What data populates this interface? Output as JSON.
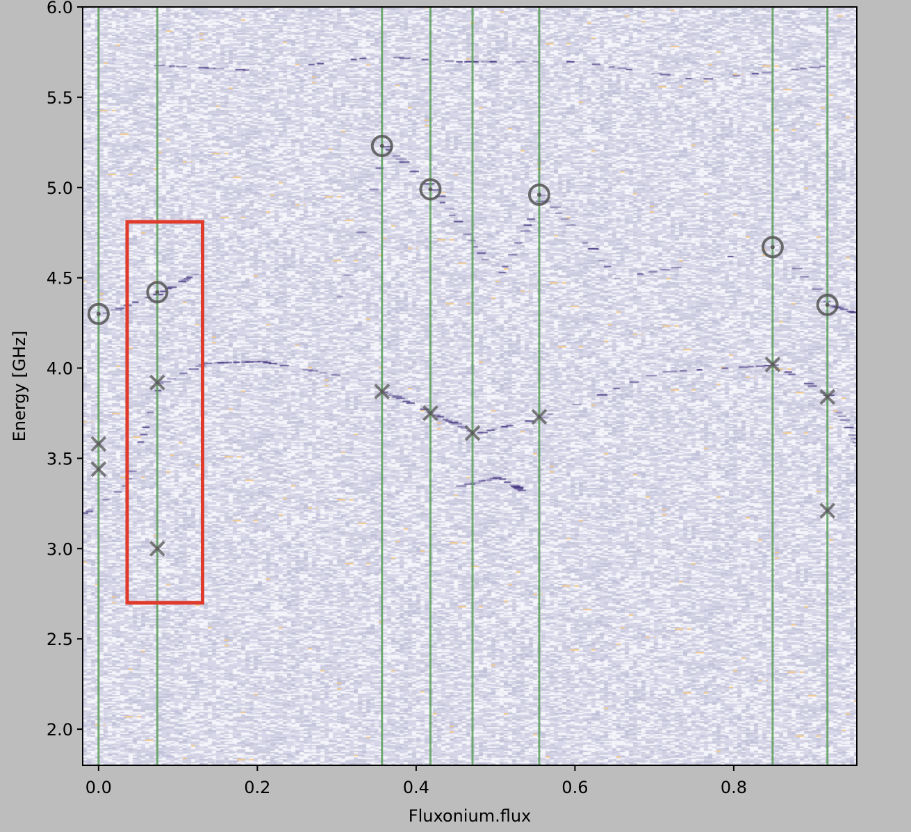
{
  "chart_data": {
    "type": "scatter",
    "title": "",
    "xlabel": "Fluxonium.flux",
    "ylabel": "Energy [GHz]",
    "xlim": [
      -0.02,
      0.955
    ],
    "ylim": [
      1.8,
      6.0
    ],
    "xticks": [
      0.0,
      0.2,
      0.4,
      0.6,
      0.8
    ],
    "xtick_labels": [
      "0.0",
      "0.2",
      "0.4",
      "0.6",
      "0.8"
    ],
    "yticks": [
      2.0,
      2.5,
      3.0,
      3.5,
      4.0,
      4.5,
      5.0,
      5.5,
      6.0
    ],
    "ytick_labels": [
      "2.0",
      "2.5",
      "3.0",
      "3.5",
      "4.0",
      "4.5",
      "5.0",
      "5.5",
      "6.0"
    ],
    "background": "two-tone spectroscopy heatmap (lavender/white noise with faint orange specks and dark purple transition segments)",
    "colors": {
      "vertical_lines": "#5a9e5a",
      "markers": "#555555",
      "highlight_box": "#e03a2c",
      "heatmap_base": "#e2e2ef",
      "transition_dark": "#3b2a7a",
      "figure_background": "#bdbdbd"
    },
    "vertical_lines_x": [
      0.0,
      0.074,
      0.357,
      0.418,
      0.471,
      0.555,
      0.849,
      0.918
    ],
    "series": [
      {
        "marker": "circle",
        "points": [
          {
            "x": 0.0,
            "y": 4.3
          },
          {
            "x": 0.074,
            "y": 4.42
          },
          {
            "x": 0.357,
            "y": 5.23
          },
          {
            "x": 0.418,
            "y": 4.99
          },
          {
            "x": 0.555,
            "y": 4.96
          },
          {
            "x": 0.849,
            "y": 4.67
          },
          {
            "x": 0.918,
            "y": 4.35
          }
        ]
      },
      {
        "marker": "x",
        "points": [
          {
            "x": 0.0,
            "y": 3.58
          },
          {
            "x": 0.0,
            "y": 3.44
          },
          {
            "x": 0.074,
            "y": 3.92
          },
          {
            "x": 0.074,
            "y": 3.0
          },
          {
            "x": 0.357,
            "y": 3.87
          },
          {
            "x": 0.418,
            "y": 3.75
          },
          {
            "x": 0.471,
            "y": 3.64
          },
          {
            "x": 0.555,
            "y": 3.73
          },
          {
            "x": 0.849,
            "y": 4.02
          },
          {
            "x": 0.918,
            "y": 3.84
          },
          {
            "x": 0.918,
            "y": 3.21
          }
        ]
      }
    ],
    "highlight_box": {
      "x0": 0.036,
      "x1": 0.131,
      "y0": 2.7,
      "y1": 4.81
    }
  }
}
